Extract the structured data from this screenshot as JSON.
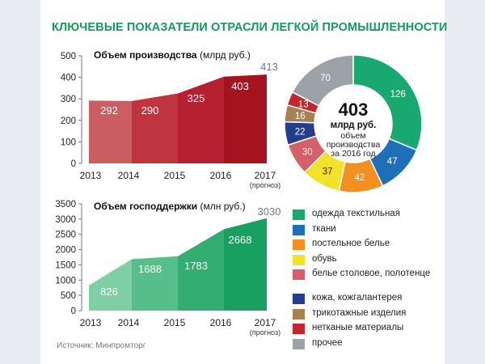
{
  "title": "КЛЮЧЕВЫЕ ПОКАЗАТЕЛИ ОТРАСЛИ ЛЕГКОЙ ПРОМЫШЛЕННОСТИ",
  "source": "Источник: Минпромторг",
  "chart_data": [
    {
      "type": "area",
      "title_bold": "Объем производства",
      "title_unit": "(млрд руб.)",
      "categories": [
        "2013",
        "2014",
        "2015",
        "2016",
        "2017"
      ],
      "sublabels": [
        "",
        "",
        "",
        "",
        "(прогноз)"
      ],
      "values": [
        292,
        290,
        325,
        403,
        413
      ],
      "yticks": [
        0,
        100,
        200,
        300,
        400,
        500
      ],
      "ylim": [
        0,
        500
      ],
      "colors": [
        "#ca5e63",
        "#bf343e",
        "#b52130",
        "#a5131f",
        "#8f1018"
      ],
      "grid": false
    },
    {
      "type": "area",
      "title_bold": "Объем господдержки",
      "title_unit": "(млн руб.)",
      "categories": [
        "2013",
        "2014",
        "2015",
        "2016",
        "2017"
      ],
      "sublabels": [
        "",
        "",
        "",
        "",
        "(прогноз)"
      ],
      "values": [
        826,
        1688,
        1783,
        2668,
        3030
      ],
      "yticks": [
        0,
        500,
        1000,
        1500,
        2000,
        2500,
        3000,
        3500
      ],
      "ylim": [
        0,
        3500
      ],
      "colors": [
        "#7fcfa6",
        "#55be8a",
        "#33ad72",
        "#17a05f",
        "#128f52"
      ],
      "grid": false
    },
    {
      "type": "pie",
      "center_value": "403",
      "center_unit": "млрд руб.",
      "center_caption": [
        "объем",
        "производства",
        "за 2016 год"
      ],
      "slices": [
        {
          "label": "одежда текстильная",
          "value": 126,
          "color": "#1aa871"
        },
        {
          "label": "ткани",
          "value": 47,
          "color": "#1f6fb8"
        },
        {
          "label": "постельное белье",
          "value": 42,
          "color": "#f39022"
        },
        {
          "label": "обувь",
          "value": 37,
          "color": "#f2e22b"
        },
        {
          "label": "белье столовое, полотенце",
          "value": 30,
          "color": "#d6606a"
        },
        {
          "label": "кожа, кожгалантерея",
          "value": 22,
          "color": "#243d8f"
        },
        {
          "label": "трикотажные изделия",
          "value": 16,
          "color": "#a8814f"
        },
        {
          "label": "нетканые материалы",
          "value": 13,
          "color": "#c3262f"
        },
        {
          "label": "прочее",
          "value": 70,
          "color": "#9da2a8"
        }
      ],
      "legend_placement": "bottom-right"
    }
  ]
}
